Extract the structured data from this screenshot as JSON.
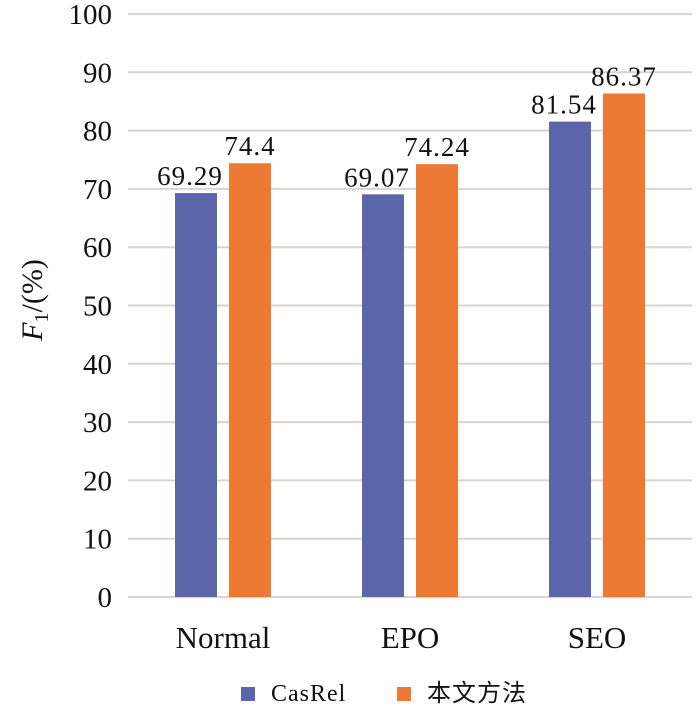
{
  "chart_data": {
    "type": "bar",
    "title": "",
    "xlabel": "",
    "ylabel": "F1/(%)",
    "ylabel_parts": {
      "main": "F",
      "sub": "1",
      "rest": "/(%)"
    },
    "ylim": [
      0,
      100
    ],
    "yticks": [
      0,
      10,
      20,
      30,
      40,
      50,
      60,
      70,
      80,
      90,
      100
    ],
    "grid": true,
    "legend_position": "bottom",
    "categories": [
      "Normal",
      "EPO",
      "SEO"
    ],
    "series": [
      {
        "name": "CasRel",
        "color": "#5a66a8",
        "values": [
          69.29,
          69.07,
          81.54
        ],
        "labels": [
          "69.29",
          "69.07",
          "81.54"
        ]
      },
      {
        "name": "本文方法",
        "color": "#ec7a35",
        "values": [
          74.4,
          74.24,
          86.37
        ],
        "labels": [
          "74.4",
          "74.24",
          "86.37"
        ]
      }
    ]
  }
}
